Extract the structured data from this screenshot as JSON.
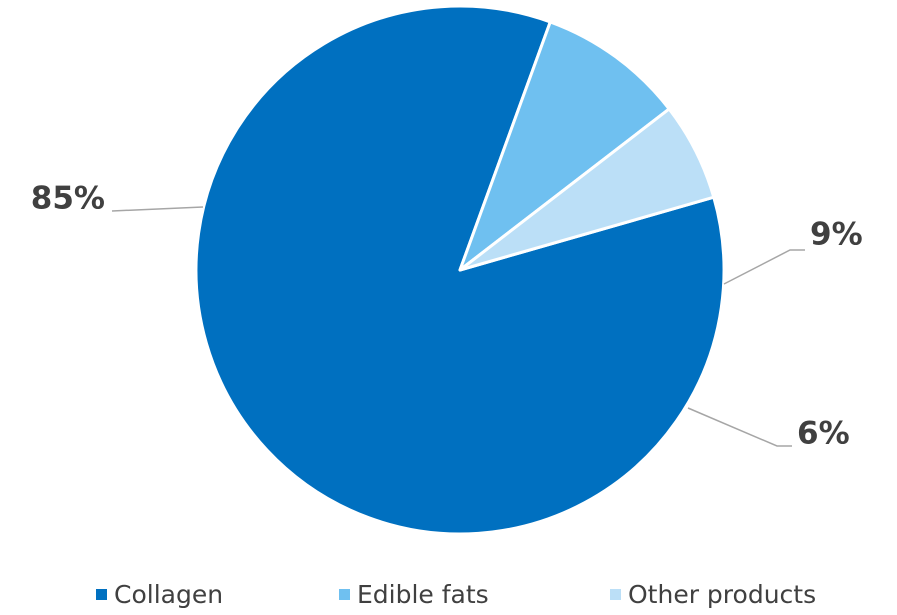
{
  "chart_data": {
    "type": "pie",
    "categories": [
      "Collagen",
      "Edible fats",
      "Other products"
    ],
    "values": [
      85,
      9,
      6
    ],
    "labels": [
      "85%",
      "9%",
      "6%"
    ],
    "colors": [
      "#0070c0",
      "#6fc0f0",
      "#bbdff7"
    ],
    "title": "",
    "legend": "bottom"
  }
}
